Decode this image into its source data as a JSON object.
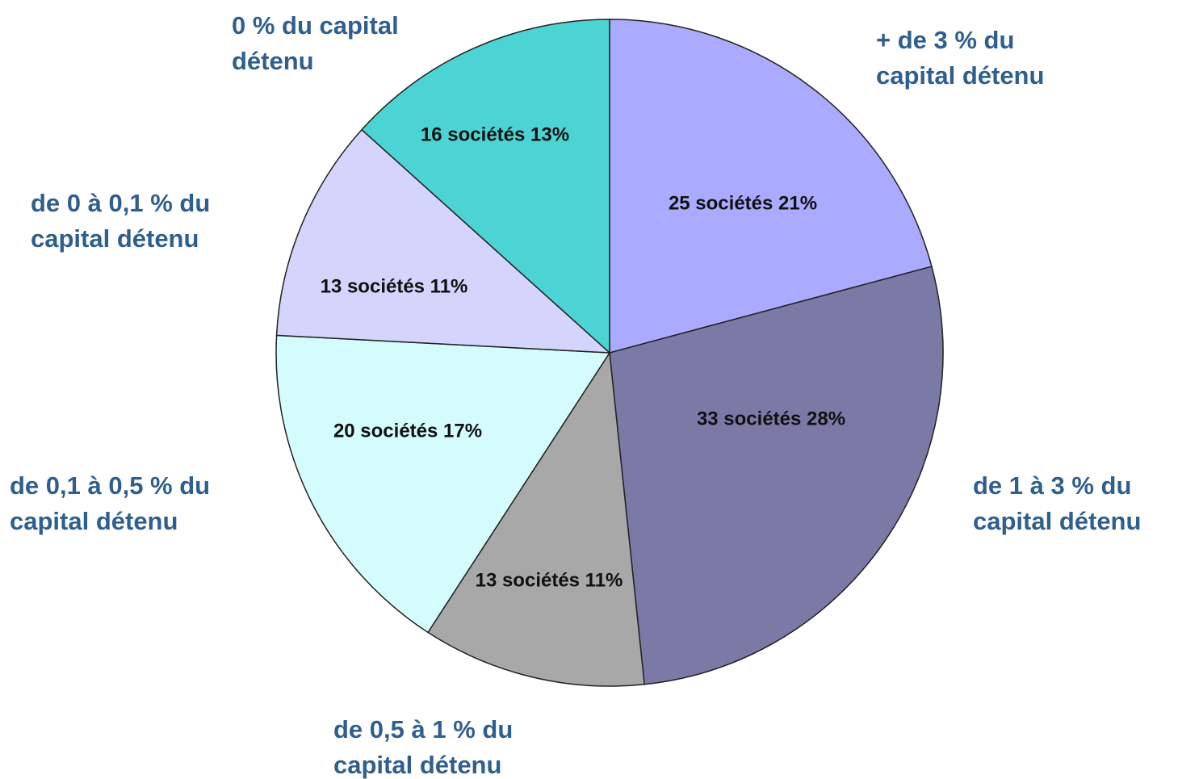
{
  "chart_data": {
    "type": "pie",
    "categories": [
      "+ de 3 % du capital détenu",
      "de 1 à 3 % du capital détenu",
      "de 0,5 à 1 % du capital détenu",
      "de 0,1 à 0,5 % du capital détenu",
      "de 0 à 0,1 % du capital détenu",
      "0 % du capital détenu"
    ],
    "values": [
      25,
      33,
      13,
      20,
      13,
      16
    ],
    "value_labels": [
      "25 sociétés 21%",
      "33 sociétés 28%",
      "13 sociétés 11%",
      "20 sociétés 17%",
      "13 sociétés 11%",
      "16 sociétés 13%"
    ],
    "colors": [
      "#aaaaff",
      "#7b7aa7",
      "#a8a8a8",
      "#d4fcfc",
      "#d4d4fc",
      "#4cd3d3"
    ]
  }
}
